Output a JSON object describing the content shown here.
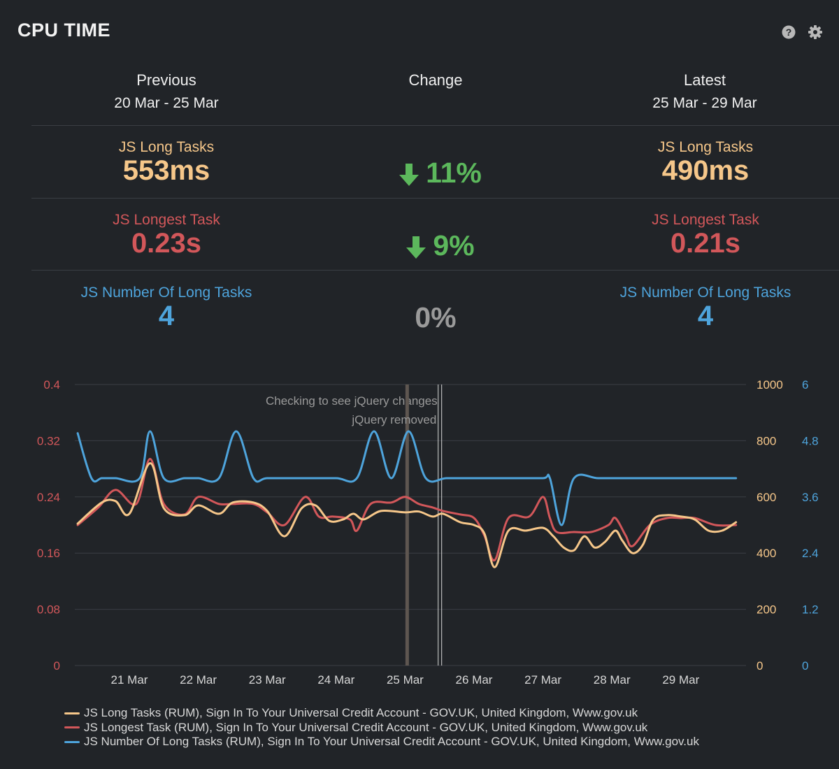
{
  "title": "CPU TIME",
  "icons": {
    "help": "help-icon",
    "settings": "gear-icon"
  },
  "columns": {
    "previous": {
      "label": "Previous",
      "range": "20 Mar - 25 Mar"
    },
    "change": {
      "label": "Change"
    },
    "latest": {
      "label": "Latest",
      "range": "25 Mar - 29 Mar"
    }
  },
  "metrics": [
    {
      "label": "JS Long Tasks",
      "previous": "553ms",
      "latest": "490ms",
      "change": "11%",
      "direction": "down",
      "color": "#f6c78a"
    },
    {
      "label": "JS Longest Task",
      "previous": "0.23s",
      "latest": "0.21s",
      "change": "9%",
      "direction": "down",
      "color": "#d2575a"
    },
    {
      "label": "JS Number Of Long Tasks",
      "previous": "4",
      "latest": "4",
      "change": "0%",
      "direction": "none",
      "color": "#4ea4dc"
    }
  ],
  "colors": {
    "background": "#212428",
    "good": "#5cb85c",
    "neutral": "#9a9a9a",
    "orange": "#f6c78a",
    "red": "#d2575a",
    "blue": "#4ea4dc",
    "grid": "#3a3e44"
  },
  "chart_data": {
    "type": "line",
    "x_domain": [
      20.25,
      29.8
    ],
    "xticks": [
      {
        "x": 21,
        "label": "21 Mar"
      },
      {
        "x": 22,
        "label": "22 Mar"
      },
      {
        "x": 23,
        "label": "23 Mar"
      },
      {
        "x": 24,
        "label": "24 Mar"
      },
      {
        "x": 25,
        "label": "25 Mar"
      },
      {
        "x": 26,
        "label": "26 Mar"
      },
      {
        "x": 27,
        "label": "27 Mar"
      },
      {
        "x": 28,
        "label": "28 Mar"
      },
      {
        "x": 29,
        "label": "29 Mar"
      }
    ],
    "axes": {
      "left": {
        "range": [
          0,
          0.4
        ],
        "ticks": [
          "0",
          "0.08",
          "0.16",
          "0.24",
          "0.32",
          "0.4"
        ],
        "color": "#d2575a"
      },
      "right1": {
        "range": [
          0,
          1000
        ],
        "ticks": [
          "0",
          "200",
          "400",
          "600",
          "800",
          "1000"
        ],
        "color": "#f6c78a"
      },
      "right2": {
        "range": [
          0,
          6
        ],
        "ticks": [
          "0",
          "1.2",
          "2.4",
          "3.6",
          "4.8",
          "6"
        ],
        "color": "#4ea4dc"
      }
    },
    "annotations": [
      {
        "label": "Checking to see jQuery changes",
        "x": 25.5,
        "style": "double-line"
      },
      {
        "label": "jQuery removed",
        "x": 25.03,
        "style": "band"
      }
    ],
    "series": [
      {
        "name": "JS Long Tasks (RUM), Sign In To Your Universal Credit Account - GOV.UK, United Kingdom, Www.gov.uk",
        "axis": "right1",
        "color": "#f6c78a",
        "points": [
          [
            20.25,
            505
          ],
          [
            20.6,
            580
          ],
          [
            20.8,
            585
          ],
          [
            21.0,
            540
          ],
          [
            21.3,
            720
          ],
          [
            21.5,
            560
          ],
          [
            21.8,
            535
          ],
          [
            22.0,
            570
          ],
          [
            22.3,
            540
          ],
          [
            22.5,
            580
          ],
          [
            22.8,
            580
          ],
          [
            23.0,
            550
          ],
          [
            23.25,
            460
          ],
          [
            23.5,
            560
          ],
          [
            23.7,
            570
          ],
          [
            23.9,
            515
          ],
          [
            24.1,
            520
          ],
          [
            24.25,
            540
          ],
          [
            24.4,
            520
          ],
          [
            24.65,
            550
          ],
          [
            25.0,
            545
          ],
          [
            25.2,
            548
          ],
          [
            25.4,
            530
          ],
          [
            25.55,
            540
          ],
          [
            25.8,
            510
          ],
          [
            26.0,
            500
          ],
          [
            26.15,
            470
          ],
          [
            26.3,
            350
          ],
          [
            26.5,
            480
          ],
          [
            26.75,
            480
          ],
          [
            27.0,
            490
          ],
          [
            27.15,
            460
          ],
          [
            27.3,
            420
          ],
          [
            27.45,
            410
          ],
          [
            27.6,
            460
          ],
          [
            27.75,
            420
          ],
          [
            27.9,
            440
          ],
          [
            28.05,
            480
          ],
          [
            28.15,
            445
          ],
          [
            28.3,
            400
          ],
          [
            28.45,
            430
          ],
          [
            28.6,
            520
          ],
          [
            28.8,
            535
          ],
          [
            29.0,
            530
          ],
          [
            29.2,
            520
          ],
          [
            29.4,
            480
          ],
          [
            29.6,
            480
          ],
          [
            29.8,
            510
          ]
        ]
      },
      {
        "name": "JS Longest Task (RUM), Sign In To Your Universal Credit Account - GOV.UK, United Kingdom, Www.gov.uk",
        "axis": "left",
        "color": "#d2575a",
        "points": [
          [
            20.25,
            0.2
          ],
          [
            20.55,
            0.225
          ],
          [
            20.8,
            0.25
          ],
          [
            21.1,
            0.23
          ],
          [
            21.3,
            0.294
          ],
          [
            21.5,
            0.23
          ],
          [
            21.8,
            0.215
          ],
          [
            22.0,
            0.24
          ],
          [
            22.3,
            0.23
          ],
          [
            22.5,
            0.23
          ],
          [
            22.8,
            0.23
          ],
          [
            23.0,
            0.218
          ],
          [
            23.25,
            0.2
          ],
          [
            23.55,
            0.24
          ],
          [
            23.75,
            0.212
          ],
          [
            23.95,
            0.212
          ],
          [
            24.2,
            0.208
          ],
          [
            24.3,
            0.192
          ],
          [
            24.5,
            0.23
          ],
          [
            24.8,
            0.232
          ],
          [
            25.0,
            0.24
          ],
          [
            25.2,
            0.23
          ],
          [
            25.4,
            0.225
          ],
          [
            25.55,
            0.22
          ],
          [
            25.8,
            0.215
          ],
          [
            26.0,
            0.21
          ],
          [
            26.15,
            0.185
          ],
          [
            26.3,
            0.15
          ],
          [
            26.5,
            0.21
          ],
          [
            26.8,
            0.212
          ],
          [
            27.0,
            0.24
          ],
          [
            27.1,
            0.21
          ],
          [
            27.2,
            0.19
          ],
          [
            27.45,
            0.19
          ],
          [
            27.7,
            0.19
          ],
          [
            27.95,
            0.2
          ],
          [
            28.05,
            0.21
          ],
          [
            28.2,
            0.185
          ],
          [
            28.3,
            0.17
          ],
          [
            28.55,
            0.2
          ],
          [
            28.8,
            0.21
          ],
          [
            29.0,
            0.21
          ],
          [
            29.2,
            0.21
          ],
          [
            29.5,
            0.2
          ],
          [
            29.8,
            0.2
          ]
        ]
      },
      {
        "name": "JS Number Of Long Tasks (RUM), Sign In To Your Universal Credit Account - GOV.UK, United Kingdom, Www.gov.uk",
        "axis": "right2",
        "color": "#4ea4dc",
        "points": [
          [
            20.25,
            4.96
          ],
          [
            20.45,
            4.0
          ],
          [
            20.6,
            4.0
          ],
          [
            20.8,
            4.0
          ],
          [
            21.15,
            4.0
          ],
          [
            21.3,
            5.0
          ],
          [
            21.5,
            4.0
          ],
          [
            21.8,
            4.0
          ],
          [
            22.0,
            4.0
          ],
          [
            22.3,
            4.0
          ],
          [
            22.55,
            5.0
          ],
          [
            22.8,
            4.0
          ],
          [
            23.0,
            4.0
          ],
          [
            23.5,
            4.0
          ],
          [
            24.0,
            4.0
          ],
          [
            24.3,
            4.0
          ],
          [
            24.55,
            5.0
          ],
          [
            24.8,
            4.0
          ],
          [
            25.05,
            5.0
          ],
          [
            25.3,
            4.0
          ],
          [
            25.6,
            4.0
          ],
          [
            26.0,
            4.0
          ],
          [
            26.5,
            4.0
          ],
          [
            27.0,
            4.0
          ],
          [
            27.1,
            4.0
          ],
          [
            27.27,
            3.0
          ],
          [
            27.45,
            4.0
          ],
          [
            27.8,
            4.0
          ],
          [
            28.2,
            4.0
          ],
          [
            28.7,
            4.0
          ],
          [
            29.2,
            4.0
          ],
          [
            29.8,
            4.0
          ]
        ]
      }
    ]
  }
}
